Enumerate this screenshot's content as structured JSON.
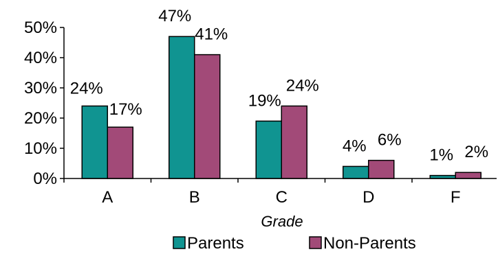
{
  "chart_data": {
    "type": "bar",
    "title": "",
    "xlabel": "Grade",
    "ylabel": "",
    "categories": [
      "A",
      "B",
      "C",
      "D",
      "F"
    ],
    "ylim": [
      0,
      50
    ],
    "yticks": [
      "0%",
      "10%",
      "20%",
      "30%",
      "40%",
      "50%"
    ],
    "series": [
      {
        "name": "Parents",
        "values": [
          24,
          47,
          19,
          4,
          1
        ],
        "labels": [
          "24%",
          "47%",
          "19%",
          "4%",
          "1%"
        ],
        "color": "#109491"
      },
      {
        "name": "Non-Parents",
        "values": [
          17,
          41,
          24,
          6,
          2
        ],
        "labels": [
          "17%",
          "41%",
          "24%",
          "6%",
          "2%"
        ],
        "color": "#a24a78"
      }
    ],
    "grid": false,
    "legend_position": "bottom"
  }
}
